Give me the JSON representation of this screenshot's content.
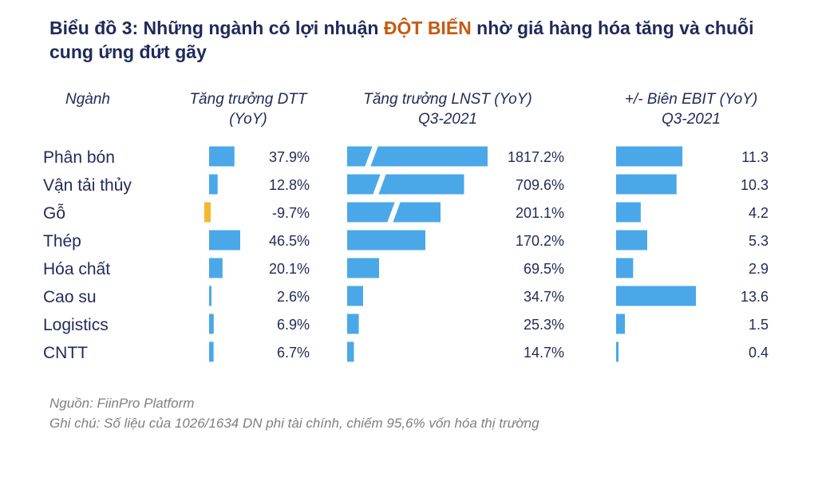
{
  "title": {
    "part1": "Biểu đồ 3: Những ngành có lợi nhuận ",
    "highlight": "ĐỘT BIẾN",
    "part2": " nhờ giá hàng hóa tăng và chuỗi cung ứng đứt gãy"
  },
  "chart_data": {
    "type": "bar",
    "orientation": "horizontal",
    "category_header": "Ngành",
    "categories": [
      "Phân bón",
      "Vận tải thủy",
      "Gỗ",
      "Thép",
      "Hóa chất",
      "Cao su",
      "Logistics",
      "CNTT"
    ],
    "series": [
      {
        "name": "Tăng trưởng DTT (YoY)",
        "header_lines": [
          "Tăng trưởng DTT",
          "(YoY)"
        ],
        "values": [
          37.9,
          12.8,
          -9.7,
          46.5,
          20.1,
          2.6,
          6.9,
          6.7
        ],
        "labels": [
          "37.9%",
          "12.8%",
          "-9.7%",
          "46.5%",
          "20.1%",
          "2.6%",
          "6.9%",
          "6.7%"
        ]
      },
      {
        "name": "Tăng trưởng LNST (YoY) Q3-2021",
        "header_lines": [
          "Tăng trưởng LNST (YoY)",
          "Q3-2021"
        ],
        "values": [
          1817.2,
          709.6,
          201.1,
          170.2,
          69.5,
          34.7,
          25.3,
          14.7
        ],
        "labels": [
          "1817.2%",
          "709.6%",
          "201.1%",
          "170.2%",
          "69.5%",
          "34.7%",
          "25.3%",
          "14.7%"
        ],
        "axis_break": [
          "Phân bón",
          "Vận tải thủy",
          "Gỗ"
        ]
      },
      {
        "name": "+/- Biên EBIT (YoY) Q3-2021",
        "header_lines": [
          "+/- Biên EBIT (YoY)",
          "Q3-2021"
        ],
        "values": [
          11.3,
          10.3,
          4.2,
          5.3,
          2.9,
          13.6,
          1.5,
          0.4
        ],
        "labels": [
          "11.3",
          "10.3",
          "4.2",
          "5.3",
          "2.9",
          "13.6",
          "1.5",
          "0.4"
        ]
      }
    ],
    "colors": {
      "bar": "#4aa8e8",
      "negative_bar": "#f5b731",
      "negative_text": "#c0392b",
      "text": "#1f2a5c"
    },
    "grid": false,
    "legend": "none"
  },
  "footer": {
    "source": "Nguồn: FiinPro Platform",
    "note": "Ghi chú: Số liệu của 1026/1634 DN phi tài chính, chiếm 95,6% vốn hóa thị trường"
  }
}
